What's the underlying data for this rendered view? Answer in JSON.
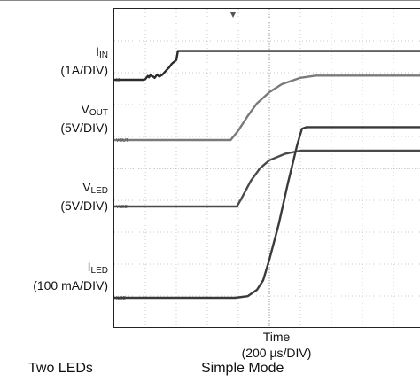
{
  "chart_data": {
    "type": "line",
    "title": "",
    "xlabel": "Time",
    "x_scale": "(200 µs/DIV)",
    "x_range_us": [
      0,
      2000
    ],
    "channels": [
      {
        "name_main": "I",
        "name_sub": "IN",
        "scale": "(1A/DIV)",
        "marker": "IIN",
        "color": "#2b2b2b",
        "points_us_div": [
          [
            0,
            0
          ],
          [
            0.95,
            0
          ],
          [
            1.0,
            0.02
          ],
          [
            1.08,
            0.12
          ],
          [
            1.12,
            0.08
          ],
          [
            1.16,
            0.14
          ],
          [
            1.25,
            0.1
          ],
          [
            1.3,
            0.06
          ],
          [
            1.38,
            0.16
          ],
          [
            1.45,
            0.1
          ],
          [
            1.55,
            0.16
          ],
          [
            1.7,
            0.32
          ],
          [
            1.78,
            0.4
          ],
          [
            1.85,
            0.5
          ],
          [
            2.0,
            0.62
          ],
          [
            2.05,
            0.9
          ],
          [
            2.15,
            0.9
          ],
          [
            2.5,
            0.9
          ],
          [
            3.0,
            0.9
          ],
          [
            10.0,
            0.9
          ]
        ]
      },
      {
        "name_main": "V",
        "name_sub": "OUT",
        "scale": "(5V/DIV)",
        "marker": "VOUT",
        "color": "#7a7a7a",
        "points_us_div": [
          [
            0,
            0
          ],
          [
            3.75,
            0
          ],
          [
            4.0,
            0.3
          ],
          [
            4.3,
            0.75
          ],
          [
            4.6,
            1.15
          ],
          [
            5.0,
            1.5
          ],
          [
            5.4,
            1.75
          ],
          [
            6.0,
            1.95
          ],
          [
            6.5,
            2.02
          ],
          [
            10.0,
            2.02
          ]
        ]
      },
      {
        "name_main": "V",
        "name_sub": "LED",
        "scale": "(5V/DIV)",
        "marker": "VLED",
        "color": "#4a4a4a",
        "points_us_div": [
          [
            0,
            0
          ],
          [
            3.95,
            0
          ],
          [
            4.1,
            0.25
          ],
          [
            4.4,
            0.8
          ],
          [
            4.7,
            1.2
          ],
          [
            5.0,
            1.45
          ],
          [
            5.5,
            1.65
          ],
          [
            6.0,
            1.75
          ],
          [
            6.5,
            1.75
          ],
          [
            10.0,
            1.75
          ]
        ]
      },
      {
        "name_main": "I",
        "name_sub": "LED",
        "scale": "(100 mA/DIV)",
        "marker": "ILED",
        "color": "#3a3a3a",
        "points_us_div": [
          [
            0,
            0
          ],
          [
            3.9,
            0
          ],
          [
            4.3,
            0.05
          ],
          [
            4.6,
            0.25
          ],
          [
            4.8,
            0.55
          ],
          [
            5.0,
            1.2
          ],
          [
            5.3,
            2.3
          ],
          [
            5.6,
            3.6
          ],
          [
            5.9,
            4.8
          ],
          [
            6.05,
            5.3
          ],
          [
            6.2,
            5.35
          ],
          [
            10.0,
            5.35
          ]
        ]
      }
    ]
  },
  "captions": {
    "left": "Two LEDs",
    "right": "Simple Mode"
  }
}
